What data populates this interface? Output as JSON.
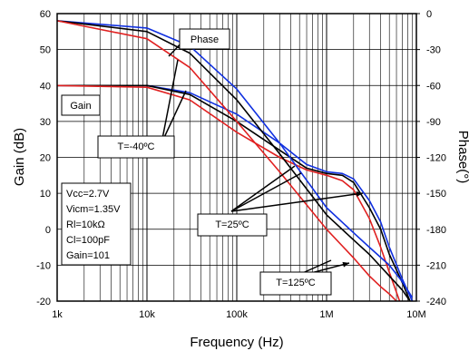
{
  "chart_data": {
    "type": "line",
    "xlabel": "Frequency (Hz)",
    "ylabel": "Gain (dB)",
    "y2label": "Phase(°)",
    "xscale": "log",
    "xlim": [
      1000,
      10000000
    ],
    "ylim": [
      -20,
      60
    ],
    "y2lim": [
      -240,
      0
    ],
    "xticks": [
      {
        "value": 1000,
        "label": "1k"
      },
      {
        "value": 10000,
        "label": "10k"
      },
      {
        "value": 100000,
        "label": "100k"
      },
      {
        "value": 1000000,
        "label": "1M"
      },
      {
        "value": 10000000,
        "label": "10M"
      }
    ],
    "yticks": [
      60,
      50,
      40,
      30,
      20,
      10,
      0,
      -10,
      -20
    ],
    "y2ticks": [
      0,
      -30,
      -60,
      -90,
      -120,
      -150,
      -180,
      -210,
      -240
    ],
    "grid": true,
    "colors": {
      "minus40": "#1030e0",
      "25": "#000000",
      "125": "#e02020"
    },
    "series": [
      {
        "curve": "gain",
        "temp": "minus40",
        "x": [
          1000,
          10000,
          30000,
          100000,
          300000,
          600000,
          1000000,
          1500000,
          2000000,
          3000000,
          4000000,
          5000000,
          7000000,
          9000000
        ],
        "y": [
          40,
          40,
          38,
          32,
          24,
          18,
          16,
          15.5,
          14,
          8,
          2,
          -5,
          -14,
          -20
        ]
      },
      {
        "curve": "gain",
        "temp": "25",
        "x": [
          1000,
          10000,
          30000,
          100000,
          300000,
          600000,
          1000000,
          1500000,
          2000000,
          3000000,
          4000000,
          5000000,
          7000000,
          8500000
        ],
        "y": [
          40,
          40,
          37.5,
          30,
          22,
          17,
          15.5,
          15,
          13,
          6,
          0,
          -7,
          -15,
          -20
        ]
      },
      {
        "curve": "gain",
        "temp": "125",
        "x": [
          1000,
          10000,
          30000,
          100000,
          300000,
          600000,
          1000000,
          1500000,
          2000000,
          3000000,
          4000000,
          5000000,
          6500000
        ],
        "y": [
          40,
          39.5,
          36,
          27,
          20,
          16.5,
          15,
          13.5,
          11,
          3,
          -5,
          -12,
          -20
        ]
      },
      {
        "curve": "phase",
        "temp": "minus40",
        "x": [
          1000,
          10000,
          30000,
          100000,
          300000,
          1000000,
          2000000,
          3000000,
          5000000,
          7000000,
          9000000
        ],
        "y": [
          -6,
          -12,
          -27,
          -63,
          -108,
          -162,
          -183,
          -195,
          -210,
          -224,
          -237
        ]
      },
      {
        "curve": "phase",
        "temp": "25",
        "x": [
          1000,
          10000,
          30000,
          100000,
          300000,
          1000000,
          2000000,
          3000000,
          5000000,
          7000000,
          8500000
        ],
        "y": [
          -6,
          -15,
          -33,
          -72,
          -117,
          -168,
          -189,
          -201,
          -219,
          -231,
          -240
        ]
      },
      {
        "curve": "phase",
        "temp": "125",
        "x": [
          1000,
          10000,
          30000,
          100000,
          300000,
          1000000,
          2000000,
          3000000,
          4000000,
          5000000,
          6000000
        ],
        "y": [
          -6,
          -21,
          -45,
          -90,
          -132,
          -180,
          -204,
          -219,
          -228,
          -234,
          -240
        ]
      }
    ],
    "annotations": [
      {
        "id": "phase",
        "text": "Phase"
      },
      {
        "id": "gain",
        "text": "Gain"
      },
      {
        "id": "tm40",
        "text": "T=-40ºC"
      },
      {
        "id": "t25",
        "text": "T=25ºC"
      },
      {
        "id": "t125",
        "text": "T=125ºC"
      }
    ],
    "conditions": [
      "Vcc=2.7V",
      "Vicm=1.35V",
      "Rl=10kΩ",
      "Cl=100pF",
      "Gain=101"
    ]
  }
}
